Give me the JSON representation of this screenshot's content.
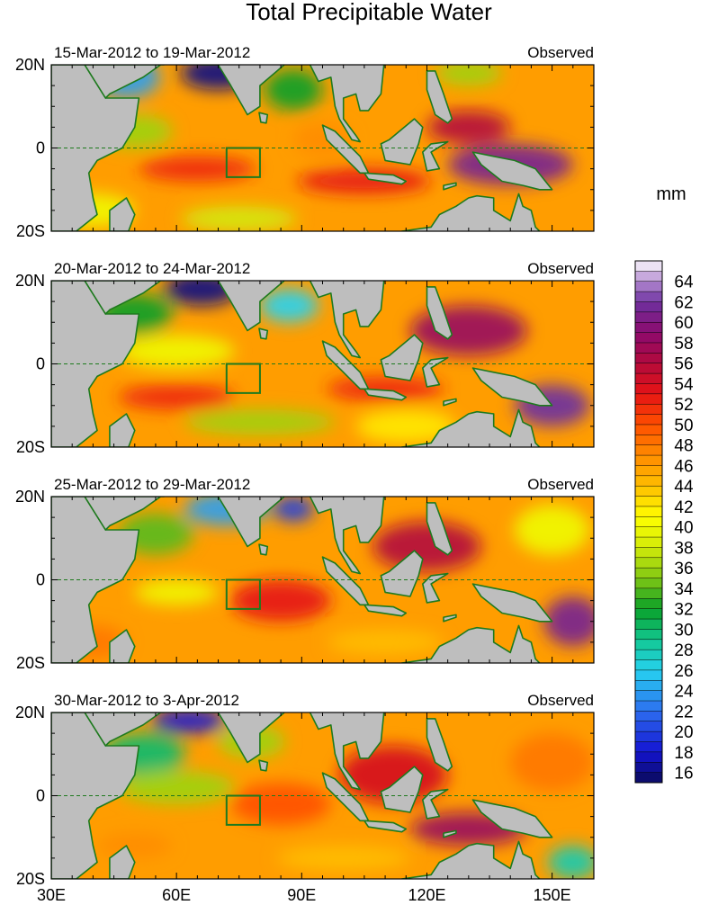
{
  "title": "Total Precipitable Water",
  "colorbar": {
    "unit_label": "mm",
    "min": 15,
    "max": 66,
    "step": 1,
    "tick_labels": [
      "16",
      "18",
      "20",
      "22",
      "24",
      "26",
      "28",
      "30",
      "32",
      "34",
      "36",
      "38",
      "40",
      "42",
      "44",
      "46",
      "48",
      "50",
      "52",
      "54",
      "56",
      "58",
      "60",
      "62",
      "64"
    ],
    "color_stops": [
      {
        "value": 15,
        "color": "#0a0a5a"
      },
      {
        "value": 18,
        "color": "#1414d2"
      },
      {
        "value": 22,
        "color": "#2d6ef0"
      },
      {
        "value": 26,
        "color": "#26d2f0"
      },
      {
        "value": 29,
        "color": "#12c890"
      },
      {
        "value": 32,
        "color": "#0aa028"
      },
      {
        "value": 35,
        "color": "#82c814"
      },
      {
        "value": 38,
        "color": "#d2eb0a"
      },
      {
        "value": 41,
        "color": "#ffff00"
      },
      {
        "value": 44,
        "color": "#ffbe00"
      },
      {
        "value": 47,
        "color": "#ff8c00"
      },
      {
        "value": 50,
        "color": "#ff5000"
      },
      {
        "value": 53,
        "color": "#e61414"
      },
      {
        "value": 56,
        "color": "#b40a3c"
      },
      {
        "value": 59,
        "color": "#8c0a6e"
      },
      {
        "value": 62,
        "color": "#6e32a0"
      },
      {
        "value": 64,
        "color": "#b48cd2"
      },
      {
        "value": 66,
        "color": "#ffffff"
      }
    ]
  },
  "chart_data": {
    "type": "heatmap",
    "title": "Total Precipitable Water",
    "variable_unit": "mm",
    "x_axis": {
      "min": 30,
      "max": 160,
      "ticks": [
        30,
        60,
        90,
        120,
        150
      ],
      "tick_labels": [
        "30E",
        "60E",
        "90E",
        "120E",
        "150E"
      ]
    },
    "y_axis": {
      "min": -20,
      "max": 20,
      "ticks": [
        -20,
        0,
        20
      ],
      "tick_labels": [
        "20S",
        "0",
        "20N"
      ]
    },
    "equator_line": "dashed",
    "land_color": "#bebebe",
    "coast_color": "#1e7a1e",
    "box": {
      "lon": [
        72,
        80
      ],
      "lat": [
        -7,
        0
      ]
    },
    "panels": [
      {
        "period": "15-Mar-2012 to 19-Mar-2012",
        "label_right": "Observed",
        "features": [
          {
            "lon": 70,
            "lat": 18,
            "sx": 9,
            "sy": 4,
            "value": 16
          },
          {
            "lon": 48,
            "lat": 17,
            "sx": 8,
            "sy": 5,
            "value": 24
          },
          {
            "lon": 88,
            "lat": 14,
            "sx": 7,
            "sy": 5,
            "value": 32
          },
          {
            "lon": 50,
            "lat": 4,
            "sx": 9,
            "sy": 4,
            "value": 36
          },
          {
            "lon": 130,
            "lat": 18,
            "sx": 8,
            "sy": 3,
            "value": 36
          },
          {
            "lon": 65,
            "lat": -5,
            "sx": 14,
            "sy": 3,
            "value": 52
          },
          {
            "lon": 105,
            "lat": -8,
            "sx": 16,
            "sy": 3,
            "value": 53
          },
          {
            "lon": 95,
            "lat": 2,
            "sx": 7,
            "sy": 4,
            "value": 47
          },
          {
            "lon": 140,
            "lat": -4,
            "sx": 15,
            "sy": 5,
            "value": 61
          },
          {
            "lon": 130,
            "lat": 5,
            "sx": 10,
            "sy": 4,
            "value": 56
          },
          {
            "lon": 40,
            "lat": -15,
            "sx": 10,
            "sy": 4,
            "value": 40
          },
          {
            "lon": 75,
            "lat": -17,
            "sx": 14,
            "sy": 3,
            "value": 38
          }
        ]
      },
      {
        "period": "20-Mar-2012 to 24-Mar-2012",
        "label_right": "Observed",
        "features": [
          {
            "lon": 66,
            "lat": 18,
            "sx": 9,
            "sy": 4,
            "value": 16
          },
          {
            "lon": 87,
            "lat": 14,
            "sx": 7,
            "sy": 4,
            "value": 26
          },
          {
            "lon": 50,
            "lat": 12,
            "sx": 9,
            "sy": 5,
            "value": 32
          },
          {
            "lon": 60,
            "lat": 3,
            "sx": 14,
            "sy": 4,
            "value": 40
          },
          {
            "lon": 80,
            "lat": -14,
            "sx": 18,
            "sy": 3,
            "value": 36
          },
          {
            "lon": 60,
            "lat": -8,
            "sx": 14,
            "sy": 3,
            "value": 52
          },
          {
            "lon": 130,
            "lat": 8,
            "sx": 14,
            "sy": 6,
            "value": 58
          },
          {
            "lon": 150,
            "lat": -10,
            "sx": 9,
            "sy": 5,
            "value": 62
          },
          {
            "lon": 110,
            "lat": -6,
            "sx": 14,
            "sy": 3,
            "value": 52
          },
          {
            "lon": 115,
            "lat": -15,
            "sx": 12,
            "sy": 4,
            "value": 42
          }
        ]
      },
      {
        "period": "25-Mar-2012 to 29-Mar-2012",
        "label_right": "Observed",
        "features": [
          {
            "lon": 72,
            "lat": 17,
            "sx": 10,
            "sy": 4,
            "value": 24
          },
          {
            "lon": 88,
            "lat": 17,
            "sx": 5,
            "sy": 3,
            "value": 20
          },
          {
            "lon": 55,
            "lat": 11,
            "sx": 9,
            "sy": 5,
            "value": 34
          },
          {
            "lon": 85,
            "lat": -5,
            "sx": 12,
            "sy": 5,
            "value": 53
          },
          {
            "lon": 60,
            "lat": -3,
            "sx": 10,
            "sy": 3,
            "value": 40
          },
          {
            "lon": 120,
            "lat": 8,
            "sx": 13,
            "sy": 6,
            "value": 56
          },
          {
            "lon": 150,
            "lat": 12,
            "sx": 9,
            "sy": 6,
            "value": 40
          },
          {
            "lon": 155,
            "lat": -10,
            "sx": 7,
            "sy": 6,
            "value": 61
          },
          {
            "lon": 110,
            "lat": -15,
            "sx": 14,
            "sy": 3,
            "value": 44
          },
          {
            "lon": 40,
            "lat": -15,
            "sx": 8,
            "sy": 4,
            "value": 48
          }
        ]
      },
      {
        "period": "30-Mar-2012 to 3-Apr-2012",
        "label_right": "Observed",
        "features": [
          {
            "lon": 63,
            "lat": 18,
            "sx": 9,
            "sy": 3,
            "value": 18
          },
          {
            "lon": 52,
            "lat": 10,
            "sx": 10,
            "sy": 5,
            "value": 30
          },
          {
            "lon": 60,
            "lat": 2,
            "sx": 14,
            "sy": 4,
            "value": 36
          },
          {
            "lon": 78,
            "lat": 13,
            "sx": 8,
            "sy": 4,
            "value": 36
          },
          {
            "lon": 85,
            "lat": -2,
            "sx": 12,
            "sy": 5,
            "value": 50
          },
          {
            "lon": 112,
            "lat": 5,
            "sx": 13,
            "sy": 7,
            "value": 54
          },
          {
            "lon": 130,
            "lat": -8,
            "sx": 14,
            "sy": 4,
            "value": 58
          },
          {
            "lon": 150,
            "lat": 8,
            "sx": 10,
            "sy": 7,
            "value": 48
          },
          {
            "lon": 155,
            "lat": -16,
            "sx": 6,
            "sy": 4,
            "value": 28
          },
          {
            "lon": 100,
            "lat": -15,
            "sx": 16,
            "sy": 3,
            "value": 44
          },
          {
            "lon": 50,
            "lat": -12,
            "sx": 9,
            "sy": 3,
            "value": 47
          }
        ]
      }
    ]
  }
}
